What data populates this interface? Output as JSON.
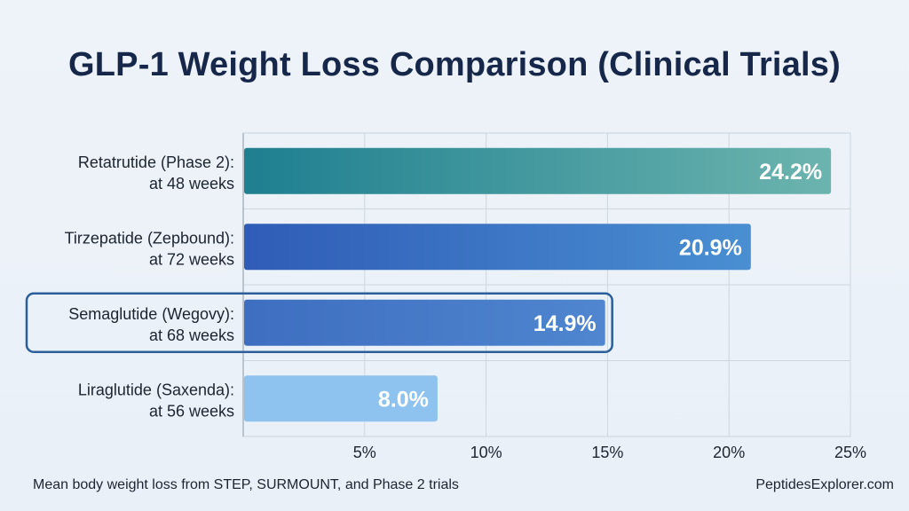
{
  "chart_data": {
    "type": "bar",
    "orientation": "horizontal",
    "title": "GLP-1 Weight Loss Comparison (Clinical Trials)",
    "xlim": [
      0,
      25
    ],
    "x_ticks": [
      {
        "value": 5,
        "label": "5%"
      },
      {
        "value": 10,
        "label": "10%"
      },
      {
        "value": 15,
        "label": "15%"
      },
      {
        "value": 20,
        "label": "20%"
      },
      {
        "value": 25,
        "label": "25%"
      }
    ],
    "grid": true,
    "categories": [
      {
        "line1": "Retatrutide (Phase 2):",
        "line2": "at 48 weeks"
      },
      {
        "line1": "Tirzepatide (Zepbound):",
        "line2": "at 72 weeks"
      },
      {
        "line1": "Semaglutide (Wegovy):",
        "line2": "at 68 weeks"
      },
      {
        "line1": "Liraglutide (Saxenda):",
        "line2": "at 56 weeks"
      }
    ],
    "values": [
      24.2,
      20.9,
      14.9,
      8.0
    ],
    "value_labels": [
      "24.2%",
      "20.9%",
      "14.9%",
      "8.0%"
    ],
    "highlighted_index": 2,
    "colors": [
      [
        "#1e7f90",
        "#6cb4ae"
      ],
      [
        "#2f5cb7",
        "#4a8fd2"
      ],
      [
        "#3e6ec0",
        "#4f86cf"
      ],
      [
        "#8fc3ef",
        "#8fc3ef"
      ]
    ],
    "highlight_color": "#2a5f9b",
    "note": "Mean body weight loss from STEP, SURMOUNT, and Phase 2 trials",
    "brand": "PeptidesExplorer.com"
  }
}
